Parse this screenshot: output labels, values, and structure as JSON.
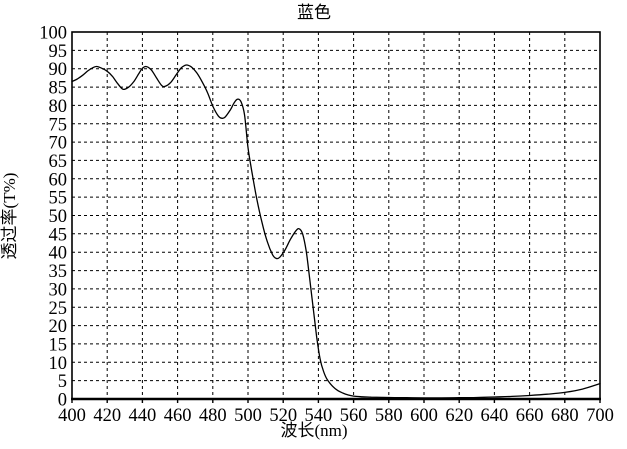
{
  "chart_data": {
    "type": "line",
    "title": "蓝色",
    "xlabel": "波长(nm)",
    "ylabel": "透过率(T%)",
    "xlim": [
      400,
      700
    ],
    "ylim": [
      0,
      100
    ],
    "x_ticks": [
      400,
      420,
      440,
      460,
      480,
      500,
      520,
      540,
      560,
      580,
      600,
      620,
      640,
      660,
      680,
      700
    ],
    "y_ticks": [
      0,
      5,
      10,
      15,
      20,
      25,
      30,
      35,
      40,
      45,
      50,
      55,
      60,
      65,
      70,
      75,
      80,
      85,
      90,
      95,
      100
    ],
    "grid": "dashed",
    "legend": "none",
    "background": "#ffffff",
    "line_color": "#000000",
    "grid_color": "#000000",
    "series": [
      {
        "name": "蓝色",
        "points": [
          [
            400,
            86.5
          ],
          [
            403,
            87.2
          ],
          [
            406,
            88.2
          ],
          [
            409,
            89.4
          ],
          [
            412,
            90.3
          ],
          [
            414,
            90.6
          ],
          [
            417,
            90.1
          ],
          [
            420,
            89.3
          ],
          [
            423,
            87.9
          ],
          [
            426,
            85.9
          ],
          [
            429,
            84.4
          ],
          [
            432,
            84.9
          ],
          [
            435,
            86.4
          ],
          [
            438,
            88.7
          ],
          [
            440,
            90.1
          ],
          [
            442,
            90.6
          ],
          [
            445,
            89.7
          ],
          [
            448,
            87.5
          ],
          [
            451,
            85.4
          ],
          [
            453,
            85.2
          ],
          [
            456,
            86.2
          ],
          [
            459,
            88.2
          ],
          [
            462,
            90.2
          ],
          [
            465,
            91.0
          ],
          [
            468,
            90.4
          ],
          [
            471,
            88.8
          ],
          [
            474,
            86.4
          ],
          [
            477,
            83.5
          ],
          [
            480,
            79.8
          ],
          [
            483,
            77.2
          ],
          [
            485,
            76.5
          ],
          [
            487,
            76.8
          ],
          [
            490,
            78.8
          ],
          [
            492,
            80.6
          ],
          [
            494,
            81.7
          ],
          [
            496,
            81.0
          ],
          [
            498,
            77.5
          ],
          [
            500,
            68.5
          ],
          [
            502,
            62.5
          ],
          [
            505,
            54.5
          ],
          [
            508,
            48.0
          ],
          [
            511,
            42.8
          ],
          [
            514,
            39.3
          ],
          [
            516,
            38.3
          ],
          [
            518,
            38.6
          ],
          [
            521,
            40.6
          ],
          [
            524,
            43.4
          ],
          [
            527,
            45.7
          ],
          [
            529,
            46.4
          ],
          [
            531,
            45.0
          ],
          [
            533,
            40.5
          ],
          [
            535,
            33.0
          ],
          [
            537,
            25.0
          ],
          [
            539,
            17.0
          ],
          [
            541,
            10.8
          ],
          [
            543,
            7.4
          ],
          [
            545,
            5.3
          ],
          [
            548,
            3.5
          ],
          [
            551,
            2.3
          ],
          [
            554,
            1.6
          ],
          [
            557,
            1.1
          ],
          [
            560,
            0.8
          ],
          [
            565,
            0.6
          ],
          [
            570,
            0.5
          ],
          [
            580,
            0.4
          ],
          [
            590,
            0.35
          ],
          [
            600,
            0.3
          ],
          [
            610,
            0.3
          ],
          [
            620,
            0.35
          ],
          [
            630,
            0.4
          ],
          [
            640,
            0.55
          ],
          [
            650,
            0.7
          ],
          [
            660,
            0.95
          ],
          [
            670,
            1.3
          ],
          [
            680,
            1.8
          ],
          [
            690,
            2.7
          ],
          [
            700,
            4.2
          ]
        ]
      }
    ]
  }
}
